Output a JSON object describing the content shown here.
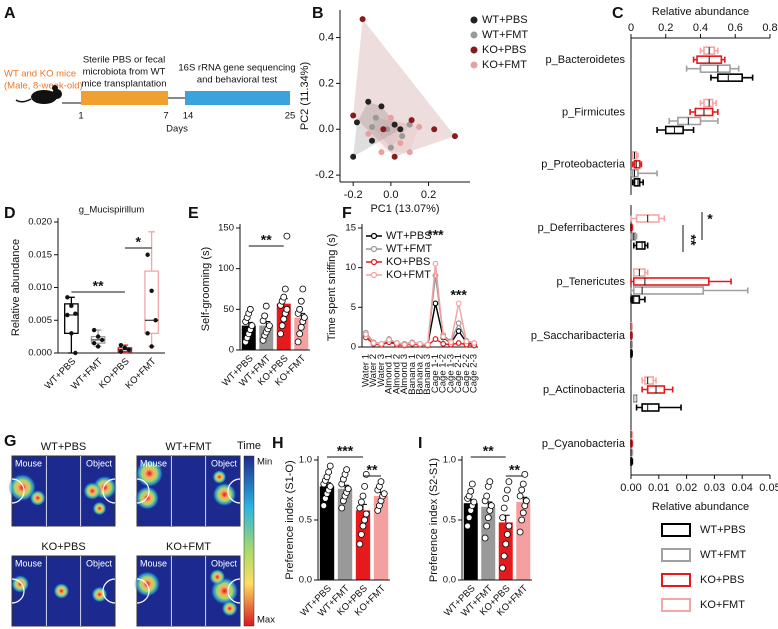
{
  "panel_a": {
    "label": "A",
    "mice": "WT and KO mice",
    "mice_detail": "(Male, 8-week-old)",
    "phase1": [
      "Sterile PBS or fecal",
      "microbiota from WT",
      "mice transplantation"
    ],
    "phase2": [
      "16S rRNA gene sequencing",
      "and behavioral test"
    ],
    "ticks": [
      1,
      7,
      14,
      25
    ],
    "axis_label": "Days"
  },
  "chart_data": [
    {
      "type": "scatter",
      "label": "B",
      "xlabel": "PC1 (13.07%)",
      "ylabel": "PC2 (11.34%)",
      "xlim": [
        -0.27,
        0.42
      ],
      "ylim": [
        -0.23,
        0.52
      ],
      "xticks": [
        -0.2,
        {
          "value": 0,
          "label": "0.0"
        },
        0.2
      ],
      "yticks": [
        -0.2,
        {
          "value": 0,
          "label": "0.0"
        },
        0.2,
        0.4
      ],
      "series": [
        {
          "name": "WT+PBS",
          "color": "#222222",
          "x": [
            -0.18,
            -0.12,
            -0.2,
            -0.05,
            0.02,
            -0.1,
            0.05
          ],
          "y": [
            0.03,
            0.12,
            -0.12,
            0.1,
            0.02,
            -0.05,
            0.0
          ]
        },
        {
          "name": "WT+FMT",
          "color": "#999999",
          "x": [
            -0.08,
            -0.02,
            0.06,
            0.1,
            -0.1,
            0.0
          ],
          "y": [
            0.05,
            0.0,
            -0.03,
            0.02,
            0.01,
            -0.08
          ]
        },
        {
          "name": "KO+PBS",
          "color": "#8b1a1a",
          "x": [
            -0.15,
            0.34,
            -0.2,
            0.11,
            -0.04,
            0.23,
            0.02
          ],
          "y": [
            0.48,
            -0.03,
            0.06,
            0.04,
            0.0,
            0.0,
            -0.12
          ]
        },
        {
          "name": "KO+FMT",
          "color": "#e8a0a0",
          "x": [
            -0.12,
            0.0,
            0.05,
            0.1,
            -0.05,
            0.15
          ],
          "y": [
            -0.02,
            0.05,
            -0.06,
            -0.1,
            -0.1,
            0.01
          ]
        }
      ]
    },
    {
      "type": "hbox",
      "label": "C",
      "xlabel": "Relative abundance",
      "xlim": [
        0,
        0.8
      ],
      "xticks": [
        0,
        0.2,
        0.4,
        0.6,
        0.8
      ],
      "categories": [
        "p_Bacteroidetes",
        "p_Firmicutes",
        "p_Proteobacteria"
      ],
      "series": [
        {
          "color": "#000000",
          "values": [
            [
              0.46,
              0.5,
              0.56,
              0.64,
              0.7
            ],
            [
              0.15,
              0.2,
              0.25,
              0.3,
              0.36
            ],
            [
              0.01,
              0.02,
              0.04,
              0.05,
              0.07
            ]
          ]
        },
        {
          "color": "#a0a0a0",
          "values": [
            [
              0.32,
              0.4,
              0.5,
              0.57,
              0.62
            ],
            [
              0.22,
              0.27,
              0.33,
              0.4,
              0.5
            ],
            [
              0.0,
              0.01,
              0.02,
              0.04,
              0.15
            ]
          ]
        },
        {
          "color": "#e41a1c",
          "values": [
            [
              0.36,
              0.38,
              0.45,
              0.52,
              0.54
            ],
            [
              0.34,
              0.37,
              0.42,
              0.47,
              0.5
            ],
            [
              0.01,
              0.02,
              0.03,
              0.05,
              0.06
            ]
          ]
        },
        {
          "color": "#f4a6a6",
          "values": [
            [
              0.4,
              0.42,
              0.45,
              0.48,
              0.5
            ],
            [
              0.4,
              0.42,
              0.45,
              0.47,
              0.49
            ],
            [
              0.01,
              0.01,
              0.02,
              0.03,
              0.04
            ]
          ]
        }
      ]
    },
    {
      "type": "hbox",
      "xlabel": "Relative abundance",
      "xlim": [
        0,
        0.05
      ],
      "xticks": [
        {
          "value": 0,
          "label": "0.00"
        },
        0.01,
        0.02,
        0.03,
        0.04,
        0.05
      ],
      "categories": [
        "p_Deferribacteres",
        "p_Tenericutes",
        "p_Saccharibacteria",
        "p_Actinobacteria",
        "p_Cyanobacteria"
      ],
      "series": [
        {
          "name": "WT+PBS",
          "color": "#000000",
          "values": [
            [
              0.001,
              0.002,
              0.004,
              0.005,
              0.006
            ],
            [
              0,
              0.0005,
              0.001,
              0.003,
              0.005
            ],
            [
              0,
              0,
              0,
              0.0002,
              0.0004
            ],
            [
              0.002,
              0.004,
              0.006,
              0.01,
              0.018
            ],
            [
              0,
              0,
              0,
              0.0002,
              0.0005
            ]
          ]
        },
        {
          "name": "WT+FMT",
          "color": "#a0a0a0",
          "values": [
            [
              0,
              0.0005,
              0.001,
              0.0015,
              0.002
            ],
            [
              0,
              0.001,
              0.004,
              0.026,
              0.042
            ],
            [
              0,
              0,
              0,
              0.0002,
              0.0004
            ],
            [
              0.001,
              0.001,
              0.002,
              0.002,
              0.002
            ],
            [
              0,
              0,
              0,
              0.0002,
              0.0005
            ]
          ]
        },
        {
          "name": "KO+PBS",
          "color": "#e41a1c",
          "values": [
            [
              0,
              0,
              0,
              0.0002,
              0.0005
            ],
            [
              0,
              0.001,
              0.005,
              0.028,
              0.036
            ],
            [
              0,
              0,
              0,
              0.0002,
              0.0004
            ],
            [
              0.004,
              0.006,
              0.009,
              0.012,
              0.015
            ],
            [
              0,
              0,
              0,
              0.0002,
              0.0005
            ]
          ]
        },
        {
          "name": "KO+FMT",
          "color": "#f4a6a6",
          "values": [
            [
              0,
              0.002,
              0.006,
              0.01,
              0.012
            ],
            [
              0.001,
              0.001,
              0.003,
              0.005,
              0.006
            ],
            [
              0,
              0,
              0,
              0.0002,
              0.0004
            ],
            [
              0.004,
              0.005,
              0.006,
              0.008,
              0.009
            ],
            [
              0,
              0,
              0,
              0.0002,
              0.0005
            ]
          ]
        }
      ],
      "annotations": [
        "*",
        "**"
      ]
    },
    {
      "type": "vbox",
      "label": "D",
      "title": "g_Mucispirillum",
      "ylabel": "Relative abundance",
      "ylim": [
        0,
        0.02
      ],
      "yticks": [
        {
          "value": 0,
          "label": "0.000"
        },
        0.005,
        {
          "value": 0.01,
          "label": "0.010"
        },
        0.015,
        {
          "value": 0.02,
          "label": "0.020"
        }
      ],
      "categories": [
        "WT+PBS",
        "WT+FMT",
        "KO+PBS",
        "KO+FMT"
      ],
      "colors": [
        "#000000",
        "#a0a0a0",
        "#e41a1c",
        "#f4a6a6"
      ],
      "values": [
        [
          0,
          0.003,
          0.0058,
          0.0075,
          0.0085
        ],
        [
          0.001,
          0.0015,
          0.002,
          0.0025,
          0.0035
        ],
        [
          0,
          0.0002,
          0.0005,
          0.0008,
          0.0012
        ],
        [
          0.001,
          0.003,
          0.005,
          0.0125,
          0.0185
        ]
      ],
      "points": [
        [
          0.0085,
          0.0072,
          0.006,
          0.0058,
          0.003,
          0
        ],
        [
          0.0035,
          0.0025,
          0.002,
          0.0015,
          0.001
        ],
        [
          0.0012,
          0.0008,
          0.0005,
          0.0002
        ],
        [
          0.015,
          0.0095,
          0.005,
          0.003,
          0.001
        ]
      ],
      "annotations": [
        "**",
        "*"
      ]
    },
    {
      "type": "bar",
      "label": "E",
      "ylabel": "Self-grooming (s)",
      "ylim": [
        0,
        150
      ],
      "yticks": [
        0,
        50,
        100,
        150
      ],
      "categories": [
        "WT+PBS",
        "WT+FMT",
        "KO+PBS",
        "KO+FMT"
      ],
      "colors": [
        "#000000",
        "#999999",
        "#e41a1c",
        "#f4a0a0"
      ],
      "values": [
        30,
        30,
        57,
        40
      ],
      "errors": [
        4,
        5,
        6,
        5
      ],
      "points": [
        [
          10,
          15,
          20,
          25,
          30,
          35,
          40,
          45,
          50
        ],
        [
          12,
          18,
          22,
          26,
          30,
          36,
          42,
          54
        ],
        [
          20,
          30,
          38,
          45,
          50,
          55,
          60,
          65,
          75,
          140
        ],
        [
          10,
          20,
          28,
          35,
          40,
          45,
          50,
          60,
          75
        ]
      ],
      "annotations": [
        "**"
      ]
    },
    {
      "type": "line",
      "label": "F",
      "ylabel": "Time spent sniffing (s)",
      "ylim": [
        0,
        15
      ],
      "yticks": [
        0,
        5,
        10,
        15
      ],
      "categories": [
        "Water 1",
        "Water 2",
        "Water 3",
        "Almond 1",
        "Almond 2",
        "Almond 3",
        "Banana 1",
        "Banana 2",
        "Banana 3",
        "Cage 1-1",
        "Cage 1-2",
        "Cage 1-3",
        "Cage 2-1",
        "Cage 2-2",
        "Cage 2-3"
      ],
      "series": [
        {
          "name": "WT+PBS",
          "color": "#000000",
          "values": [
            1.5,
            0.5,
            0.3,
            0.8,
            0.4,
            0.3,
            0.5,
            0.3,
            0.3,
            5.5,
            1.2,
            0.5,
            2.0,
            0.6,
            0.4
          ]
        },
        {
          "name": "WT+FMT",
          "color": "#999999",
          "values": [
            1.8,
            0.6,
            0.4,
            1.0,
            0.5,
            0.4,
            0.6,
            0.4,
            0.3,
            9.0,
            1.5,
            0.7,
            3.0,
            0.8,
            0.5
          ]
        },
        {
          "name": "KO+PBS",
          "color": "#e41a1c",
          "values": [
            1.2,
            0.4,
            0.3,
            0.6,
            0.3,
            0.2,
            0.4,
            0.3,
            0.2,
            1.0,
            0.4,
            0.3,
            0.5,
            0.3,
            0.2
          ]
        },
        {
          "name": "KO+FMT",
          "color": "#f4a0a0",
          "values": [
            1.6,
            0.5,
            0.4,
            0.9,
            0.5,
            0.3,
            0.5,
            0.4,
            0.3,
            10.5,
            1.3,
            0.6,
            5.5,
            0.7,
            0.5
          ]
        }
      ],
      "annotations": [
        "***",
        "***"
      ]
    },
    {
      "type": "bar",
      "label": "H",
      "ylabel": "Preference index (S1-O)",
      "ylim": [
        0,
        1
      ],
      "yticks": [
        {
          "value": 0,
          "label": "0.0"
        },
        0.5,
        {
          "value": 1,
          "label": "1.0"
        }
      ],
      "categories": [
        "WT+PBS",
        "WT+FMT",
        "KO+PBS",
        "KO+FMT"
      ],
      "colors": [
        "#000000",
        "#999999",
        "#e41a1c",
        "#f4a0a0"
      ],
      "values": [
        0.78,
        0.76,
        0.58,
        0.7
      ],
      "errors": [
        0.03,
        0.03,
        0.05,
        0.03
      ],
      "points": [
        [
          0.62,
          0.68,
          0.72,
          0.75,
          0.78,
          0.8,
          0.83,
          0.86,
          0.9,
          0.95
        ],
        [
          0.6,
          0.66,
          0.7,
          0.73,
          0.76,
          0.8,
          0.84,
          0.88,
          0.92
        ],
        [
          0.3,
          0.38,
          0.45,
          0.5,
          0.55,
          0.6,
          0.65,
          0.7,
          0.78,
          0.88
        ],
        [
          0.58,
          0.62,
          0.66,
          0.7,
          0.72,
          0.75,
          0.78,
          0.82
        ]
      ],
      "annotations": [
        "***",
        "**"
      ]
    },
    {
      "type": "bar",
      "label": "I",
      "ylabel": "Preference index (S2-S1)",
      "ylim": [
        0,
        1
      ],
      "yticks": [
        {
          "value": 0,
          "label": "0.0"
        },
        0.5,
        {
          "value": 1,
          "label": "1.0"
        }
      ],
      "categories": [
        "WT+PBS",
        "WT+FMT",
        "KO+PBS",
        "KO+FMT"
      ],
      "colors": [
        "#000000",
        "#999999",
        "#e41a1c",
        "#f4a0a0"
      ],
      "values": [
        0.64,
        0.61,
        0.48,
        0.65
      ],
      "errors": [
        0.03,
        0.04,
        0.06,
        0.04
      ],
      "points": [
        [
          0.45,
          0.52,
          0.58,
          0.62,
          0.65,
          0.68,
          0.7,
          0.74,
          0.8
        ],
        [
          0.35,
          0.45,
          0.52,
          0.58,
          0.62,
          0.66,
          0.7,
          0.78,
          0.82
        ],
        [
          0.1,
          0.2,
          0.3,
          0.38,
          0.45,
          0.52,
          0.6,
          0.68,
          0.75,
          0.82
        ],
        [
          0.4,
          0.5,
          0.56,
          0.62,
          0.66,
          0.7,
          0.75,
          0.8,
          0.88
        ]
      ],
      "annotations": [
        "**",
        "**"
      ]
    }
  ],
  "panel_g": {
    "label": "G",
    "maps": [
      "WT+PBS",
      "WT+FMT",
      "KO+PBS",
      "KO+FMT"
    ],
    "left": "Mouse",
    "right": "Object",
    "colorbar_title": "Time",
    "colorbar_min": "Min",
    "colorbar_max": "Max"
  }
}
